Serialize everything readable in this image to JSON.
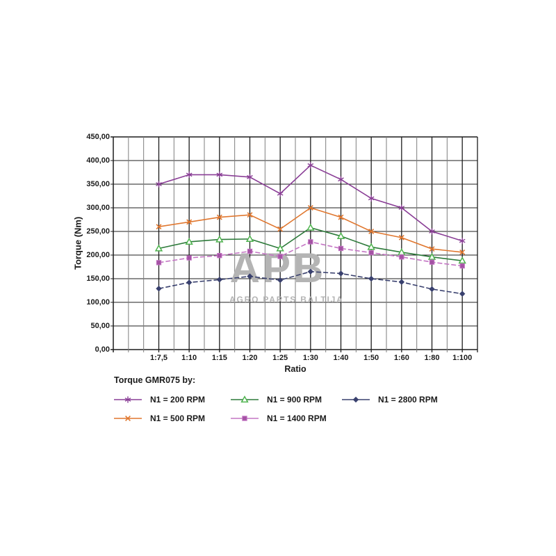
{
  "watermark": {
    "logo": "APB",
    "subtitle": "AGRO PARTS BALTIJA",
    "color": "#b4b4b4"
  },
  "legend": {
    "title": "Torque GMR075 by:"
  },
  "chart_data": {
    "type": "line",
    "title": "",
    "xlabel": "Ratio",
    "ylabel": "Torque (Nm)",
    "ylim": [
      0,
      450
    ],
    "ytick_step": 50,
    "ytick_labels": [
      "0,00",
      "50,00",
      "100,00",
      "150,00",
      "200,00",
      "250,00",
      "300,00",
      "350,00",
      "400,00",
      "450,00"
    ],
    "categories": [
      "1:7,5",
      "1:10",
      "1:15",
      "1:20",
      "1:25",
      "1:30",
      "1:40",
      "1:50",
      "1:60",
      "1:80",
      "1:100"
    ],
    "grid": {
      "horizontal_major": true,
      "vertical_major": true,
      "vertical_minor": true
    },
    "legend_position": "bottom-left",
    "series": [
      {
        "name": "N1 = 200 RPM",
        "marker": "star",
        "line_style": "solid",
        "line_color": "#8A3E96",
        "marker_color": "#8A3E96",
        "values": [
          350,
          370,
          370,
          365,
          330,
          390,
          360,
          320,
          300,
          250,
          230
        ]
      },
      {
        "name": "N1 = 500 RPM",
        "marker": "x",
        "line_style": "solid",
        "line_color": "#E0772F",
        "marker_color": "#E0772F",
        "values": [
          260,
          270,
          280,
          285,
          255,
          300,
          280,
          250,
          237,
          213,
          206
        ]
      },
      {
        "name": "N1 = 900 RPM",
        "marker": "triangle-open",
        "line_style": "solid",
        "line_color": "#2D7A3A",
        "marker_color": "#4DB34D",
        "values": [
          214,
          228,
          233,
          234,
          214,
          258,
          240,
          217,
          206,
          196,
          188
        ]
      },
      {
        "name": "N1 = 1400 RPM",
        "marker": "square",
        "line_style": "dashed",
        "line_color": "#C476C4",
        "marker_color": "#A452A4",
        "values": [
          184,
          194,
          199,
          208,
          197,
          228,
          214,
          205,
          196,
          185,
          177
        ]
      },
      {
        "name": "N1 = 2800 RPM",
        "marker": "diamond",
        "line_style": "dashed",
        "line_color": "#39406E",
        "marker_color": "#39406E",
        "values": [
          129,
          142,
          148,
          155,
          147,
          165,
          161,
          150,
          143,
          128,
          118
        ]
      }
    ]
  }
}
